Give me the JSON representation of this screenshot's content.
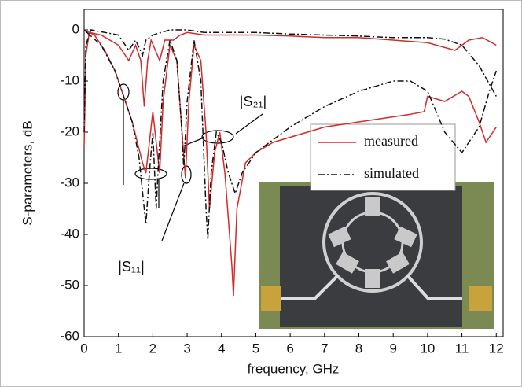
{
  "chart_data": {
    "type": "line",
    "xlabel": "frequency, GHz",
    "ylabel": "S-parameters, dB",
    "xlim": [
      0,
      12.2
    ],
    "ylim": [
      -60,
      4
    ],
    "xticks": [
      0,
      1,
      2,
      3,
      4,
      5,
      6,
      7,
      8,
      9,
      10,
      11,
      12
    ],
    "yticks": [
      -60,
      -50,
      -40,
      -30,
      -20,
      -10,
      0
    ],
    "legend": "upper right",
    "annotations": [
      "|S₂₁|",
      "|S₁₁|"
    ],
    "series": [
      {
        "name": "measured",
        "color": "#d42a2a",
        "dash": "solid",
        "s11": {
          "x": [
            0,
            0.3,
            0.6,
            0.9,
            1.1,
            1.4,
            1.7,
            1.8,
            1.9,
            2.0,
            2.1,
            2.2,
            2.3,
            2.5,
            2.7,
            2.85,
            2.95,
            3.05,
            3.2,
            3.4,
            3.55,
            3.65,
            3.8,
            3.95,
            4.1,
            4.3,
            4.35,
            4.45,
            4.7,
            5,
            5.5,
            6,
            6.5,
            7,
            7.5,
            8,
            8.5,
            9,
            9.5,
            9.9,
            10,
            10.5,
            11,
            11.2,
            11.5,
            11.7,
            11.9,
            12
          ],
          "values": [
            0,
            -1,
            -4,
            -8,
            -12,
            -18,
            -26,
            -28,
            -22,
            -16,
            -22,
            -28,
            -14,
            -3,
            -6,
            -20,
            -29,
            -14,
            -3,
            -6,
            -20,
            -35,
            -24,
            -20,
            -28,
            -46,
            -52,
            -35,
            -26,
            -24,
            -22,
            -21,
            -20,
            -19,
            -18.5,
            -18,
            -17.5,
            -17,
            -16.5,
            -16,
            -13,
            -14,
            -12,
            -13,
            -18,
            -22,
            -20,
            -19
          ]
        },
        "s21": {
          "x": [
            0,
            0.05,
            0.15,
            0.5,
            1,
            1.3,
            1.5,
            1.65,
            1.75,
            1.85,
            1.95,
            2.2,
            2.35,
            2.6,
            2.8,
            3,
            3.5,
            4,
            5,
            6,
            7,
            8,
            9,
            10,
            10.8,
            11.2,
            11.6,
            12
          ],
          "values": [
            -23,
            -5,
            -0.5,
            -1,
            -3,
            -6,
            -3,
            -6,
            -15,
            -6,
            -2,
            -6,
            -2,
            -2,
            -1,
            -0.5,
            -1,
            -1,
            -1,
            -1.2,
            -1.5,
            -1.5,
            -2,
            -2.5,
            -4,
            -2,
            -1.5,
            -3
          ]
        }
      },
      {
        "name": "simulated",
        "color": "#111111",
        "dash": "8 3 2 3",
        "s11": {
          "x": [
            0,
            0.5,
            0.9,
            1.1,
            1.4,
            1.6,
            1.75,
            1.8,
            1.9,
            2.0,
            2.1,
            2.15,
            2.3,
            2.5,
            2.7,
            2.85,
            2.9,
            3.0,
            3.2,
            3.4,
            3.55,
            3.6,
            3.7,
            3.85,
            4.0,
            4.2,
            4.4,
            4.6,
            5,
            6,
            7,
            8,
            9,
            9.5,
            10,
            10.5,
            11,
            11.5,
            11.8,
            12
          ],
          "values": [
            0,
            -3,
            -8,
            -12,
            -18,
            -25,
            -35,
            -38,
            -28,
            -20,
            -35,
            -28,
            -10,
            -2,
            -6,
            -20,
            -27,
            -14,
            -2,
            -10,
            -35,
            -41,
            -28,
            -20,
            -22,
            -28,
            -32,
            -28,
            -24,
            -19,
            -15,
            -12,
            -10,
            -10,
            -12,
            -20,
            -24,
            -19,
            -12,
            -8
          ]
        },
        "s21": {
          "x": [
            0,
            0.05,
            0.2,
            1,
            1.3,
            1.5,
            1.7,
            1.8,
            2.0,
            2.5,
            3,
            3.5,
            4,
            5,
            6,
            7,
            8,
            9,
            10,
            10.5,
            11,
            11.5,
            12
          ],
          "values": [
            -20,
            -3,
            0,
            -1,
            -4,
            -2,
            -5,
            -2,
            -1,
            0,
            0,
            -0.5,
            -0.5,
            -0.5,
            -0.8,
            -1,
            -1.2,
            -1.5,
            -1.5,
            -1.8,
            -3,
            -7,
            -13
          ]
        }
      }
    ]
  }
}
